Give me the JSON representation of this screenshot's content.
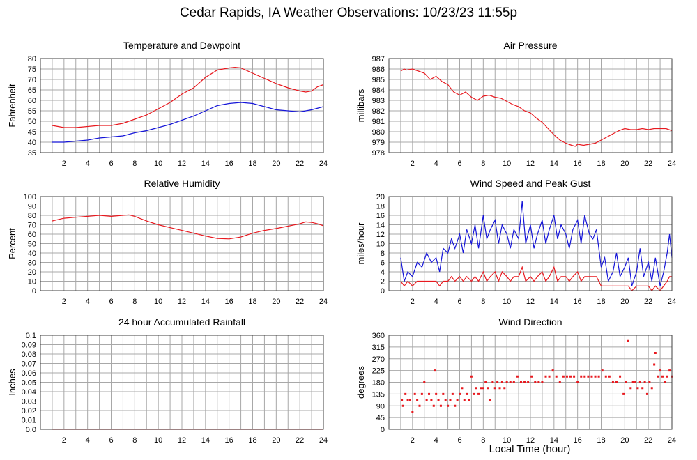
{
  "title": "Cedar Rapids, IA Weather Observations: 10/23/23 11:55p",
  "x_axis_label": "Local Time (hour)",
  "colors": {
    "red": "#e8191f",
    "blue": "#1515d8",
    "grid": "#a8a8a8",
    "frame": "#404040"
  },
  "chart_data": [
    {
      "id": "temp",
      "type": "line",
      "title": "Temperature and Dewpoint",
      "ylabel": "Fahrenheit",
      "xlabel": "",
      "xlim": [
        0,
        24
      ],
      "ylim": [
        35,
        80
      ],
      "xticks": [
        2,
        4,
        6,
        8,
        10,
        12,
        14,
        16,
        18,
        20,
        22,
        24
      ],
      "yticks": [
        35,
        40,
        45,
        50,
        55,
        60,
        65,
        70,
        75,
        80
      ],
      "grid": true,
      "series": [
        {
          "color": "#e8191f",
          "x": [
            1,
            1.5,
            2,
            3,
            4,
            5,
            6,
            7,
            8,
            9,
            10,
            11,
            12,
            13,
            14,
            15,
            16,
            16.5,
            17,
            18,
            19,
            20,
            21,
            22,
            22.5,
            23,
            23.5,
            24
          ],
          "y": [
            48,
            47.5,
            47,
            47,
            47.5,
            48,
            48,
            49,
            51,
            53,
            56,
            59,
            63,
            66,
            71,
            74.5,
            75.5,
            75.8,
            75.5,
            73,
            70.5,
            68,
            66,
            64.5,
            64,
            64.5,
            66.5,
            67.5
          ]
        },
        {
          "color": "#1515d8",
          "x": [
            1,
            2,
            3,
            4,
            5,
            6,
            7,
            8,
            9,
            10,
            11,
            12,
            13,
            14,
            15,
            16,
            17,
            18,
            19,
            20,
            21,
            22,
            23,
            24
          ],
          "y": [
            40,
            40,
            40.5,
            41,
            42,
            42.5,
            43,
            44.5,
            45.5,
            47,
            48.5,
            50.5,
            52.5,
            55,
            57.5,
            58.5,
            59,
            58.5,
            57,
            55.5,
            55,
            54.5,
            55.5,
            57
          ]
        }
      ]
    },
    {
      "id": "pressure",
      "type": "line",
      "title": "Air Pressure",
      "ylabel": "millibars",
      "xlabel": "",
      "xlim": [
        0,
        24
      ],
      "ylim": [
        978,
        987
      ],
      "xticks": [
        2,
        4,
        6,
        8,
        10,
        12,
        14,
        16,
        18,
        20,
        22,
        24
      ],
      "yticks": [
        978,
        979,
        980,
        981,
        982,
        983,
        984,
        985,
        986,
        987
      ],
      "grid": true,
      "series": [
        {
          "color": "#e8191f",
          "x": [
            1,
            1.3,
            1.5,
            2,
            2.5,
            3,
            3.5,
            4,
            4.5,
            5,
            5.5,
            6,
            6.5,
            7,
            7.5,
            8,
            8.5,
            9,
            9.5,
            10,
            10.5,
            11,
            11.5,
            12,
            12.5,
            13,
            13.5,
            14,
            14.5,
            15,
            15.5,
            15.8,
            16,
            16.5,
            17,
            17.5,
            18,
            18.5,
            19,
            19.5,
            20,
            20.5,
            21,
            21.5,
            22,
            22.5,
            23,
            23.5,
            24
          ],
          "y": [
            985.8,
            986.0,
            985.9,
            986.0,
            985.8,
            985.6,
            985.0,
            985.3,
            984.8,
            984.5,
            983.8,
            983.5,
            983.8,
            983.3,
            983.0,
            983.4,
            983.5,
            983.3,
            983.2,
            982.9,
            982.6,
            982.4,
            982.0,
            981.8,
            981.3,
            980.9,
            980.3,
            979.7,
            979.2,
            978.9,
            978.7,
            978.6,
            978.8,
            978.7,
            978.8,
            978.9,
            979.2,
            979.5,
            979.8,
            980.1,
            980.3,
            980.2,
            980.2,
            980.3,
            980.2,
            980.3,
            980.3,
            980.3,
            980.1
          ]
        }
      ]
    },
    {
      "id": "humidity",
      "type": "line",
      "title": "Relative Humidity",
      "ylabel": "Percent",
      "xlabel": "",
      "xlim": [
        0,
        24
      ],
      "ylim": [
        0,
        100
      ],
      "xticks": [
        2,
        4,
        6,
        8,
        10,
        12,
        14,
        16,
        18,
        20,
        22,
        24
      ],
      "yticks": [
        0,
        10,
        20,
        30,
        40,
        50,
        60,
        70,
        80,
        90,
        100
      ],
      "grid": true,
      "series": [
        {
          "color": "#e8191f",
          "x": [
            1,
            2,
            3,
            4,
            5,
            6,
            7,
            7.5,
            8,
            9,
            10,
            11,
            12,
            13,
            14,
            15,
            16,
            17,
            18,
            19,
            20,
            21,
            22,
            22.5,
            23,
            23.5,
            24
          ],
          "y": [
            74,
            77,
            78,
            79,
            80,
            79,
            80,
            80.5,
            79,
            74,
            70,
            67,
            64,
            61,
            58,
            55.5,
            55,
            57,
            61,
            64,
            66,
            68.5,
            71,
            73,
            72.5,
            71,
            69
          ]
        }
      ]
    },
    {
      "id": "wind",
      "type": "line",
      "title": "Wind Speed and Peak Gust",
      "ylabel": "miles/hour",
      "xlabel": "",
      "xlim": [
        0,
        24
      ],
      "ylim": [
        0,
        20
      ],
      "xticks": [
        2,
        4,
        6,
        8,
        10,
        12,
        14,
        16,
        18,
        20,
        22,
        24
      ],
      "yticks": [
        0,
        2,
        4,
        6,
        8,
        10,
        12,
        14,
        16,
        18,
        20
      ],
      "grid": true,
      "series": [
        {
          "color": "#1515d8",
          "x": [
            1,
            1.3,
            1.6,
            2,
            2.4,
            2.8,
            3.2,
            3.6,
            4,
            4.3,
            4.6,
            5,
            5.3,
            5.6,
            6,
            6.3,
            6.6,
            7,
            7.3,
            7.6,
            8,
            8.3,
            8.6,
            9,
            9.3,
            9.6,
            10,
            10.3,
            10.6,
            11,
            11.3,
            11.6,
            12,
            12.3,
            12.6,
            13,
            13.3,
            13.6,
            14,
            14.3,
            14.6,
            15,
            15.3,
            15.6,
            16,
            16.3,
            16.6,
            17,
            17.3,
            17.6,
            18,
            18.3,
            18.6,
            19,
            19.3,
            19.6,
            20,
            20.3,
            20.6,
            21,
            21.3,
            21.6,
            22,
            22.3,
            22.6,
            23,
            23.3,
            23.6,
            23.8,
            24
          ],
          "y": [
            7,
            2,
            4,
            3,
            6,
            5,
            8,
            6,
            7,
            4,
            9,
            8,
            11,
            9,
            12,
            8,
            13,
            10,
            14,
            9,
            16,
            11,
            13,
            15,
            10,
            14,
            12,
            9,
            13,
            11,
            19,
            10,
            14,
            9,
            12,
            15,
            10,
            13,
            16,
            11,
            14,
            12,
            9,
            13,
            15,
            10,
            16,
            12,
            11,
            13,
            5,
            7,
            2,
            4,
            8,
            3,
            5,
            7,
            1,
            4,
            9,
            3,
            6,
            2,
            7,
            1,
            4,
            8,
            12,
            7
          ]
        },
        {
          "color": "#e8191f",
          "x": [
            1,
            1.3,
            1.6,
            2,
            2.4,
            2.8,
            3.2,
            3.6,
            4,
            4.3,
            4.6,
            5,
            5.3,
            5.6,
            6,
            6.3,
            6.6,
            7,
            7.3,
            7.6,
            8,
            8.3,
            8.6,
            9,
            9.3,
            9.6,
            10,
            10.3,
            10.6,
            11,
            11.3,
            11.6,
            12,
            12.3,
            12.6,
            13,
            13.3,
            13.6,
            14,
            14.3,
            14.6,
            15,
            15.3,
            15.6,
            16,
            16.3,
            16.6,
            17,
            17.3,
            17.6,
            18,
            18.3,
            18.6,
            19,
            19.3,
            19.6,
            20,
            20.3,
            20.6,
            21,
            21.3,
            21.6,
            22,
            22.3,
            22.6,
            23,
            23.3,
            23.6,
            23.8,
            24
          ],
          "y": [
            2,
            1,
            2,
            1,
            2,
            2,
            2,
            2,
            2,
            1,
            2,
            2,
            3,
            2,
            3,
            2,
            3,
            2,
            3,
            2,
            4,
            2,
            3,
            4,
            2,
            4,
            3,
            2,
            3,
            3,
            5,
            2,
            3,
            2,
            3,
            4,
            2,
            3,
            5,
            2,
            3,
            3,
            2,
            3,
            4,
            2,
            3,
            3,
            3,
            3,
            1,
            1,
            1,
            1,
            1,
            1,
            1,
            1,
            0,
            1,
            1,
            1,
            1,
            0,
            1,
            0,
            1,
            2,
            3,
            3
          ]
        }
      ]
    },
    {
      "id": "rain",
      "type": "line",
      "title": "24 hour Accumulated Rainfall",
      "ylabel": "Inches",
      "xlabel": "",
      "xlim": [
        0,
        24
      ],
      "ylim": [
        0,
        0.1
      ],
      "xticks": [
        2,
        4,
        6,
        8,
        10,
        12,
        14,
        16,
        18,
        20,
        22,
        24
      ],
      "yticks": [
        "0.0",
        "0.01",
        "0.02",
        "0.03",
        "0.04",
        "0.05",
        "0.06",
        "0.07",
        "0.08",
        "0.09",
        "0.1"
      ],
      "grid": true,
      "series": [
        {
          "color": "#e8191f",
          "x": [
            1,
            24
          ],
          "y": [
            0,
            0
          ]
        }
      ]
    },
    {
      "id": "direction",
      "type": "scatter",
      "title": "Wind Direction",
      "ylabel": "degrees",
      "xlabel": "Local Time (hour)",
      "xlim": [
        0,
        24
      ],
      "ylim": [
        0,
        360
      ],
      "xticks": [
        2,
        4,
        6,
        8,
        10,
        12,
        14,
        16,
        18,
        20,
        22,
        24
      ],
      "yticks": [
        0,
        45,
        90,
        135,
        180,
        225,
        270,
        315,
        360
      ],
      "grid": true,
      "series": [
        {
          "color": "#e8191f",
          "x": [
            1.1,
            1.2,
            1.4,
            1.6,
            1.8,
            2.0,
            2.2,
            2.4,
            2.6,
            2.8,
            3.0,
            3.2,
            3.4,
            3.6,
            3.8,
            3.9,
            4.0,
            4.2,
            4.4,
            4.6,
            4.8,
            5.0,
            5.2,
            5.4,
            5.6,
            5.8,
            6.0,
            6.2,
            6.4,
            6.6,
            6.8,
            7.0,
            7.2,
            7.4,
            7.6,
            7.8,
            8.0,
            8.2,
            8.4,
            8.6,
            8.8,
            9.0,
            9.2,
            9.4,
            9.6,
            9.8,
            10.0,
            10.3,
            10.6,
            10.9,
            11.2,
            11.5,
            11.8,
            12.1,
            12.4,
            12.7,
            13.0,
            13.3,
            13.6,
            13.9,
            14.2,
            14.5,
            14.8,
            15.1,
            15.4,
            15.7,
            16.0,
            16.3,
            16.6,
            16.9,
            17.2,
            17.5,
            17.8,
            18.1,
            18.4,
            18.7,
            19.0,
            19.3,
            19.6,
            19.9,
            20.1,
            20.3,
            20.5,
            20.7,
            20.9,
            21.1,
            21.3,
            21.5,
            21.7,
            21.9,
            22.1,
            22.3,
            22.5,
            22.6,
            22.8,
            23.0,
            23.2,
            23.4,
            23.6,
            23.8,
            24.0
          ],
          "y": [
            112,
            90,
            135,
            112,
            112,
            68,
            135,
            112,
            90,
            135,
            180,
            112,
            135,
            112,
            90,
            225,
            135,
            112,
            90,
            135,
            112,
            90,
            112,
            135,
            90,
            112,
            135,
            158,
            112,
            135,
            112,
            202,
            135,
            158,
            135,
            158,
            158,
            180,
            158,
            112,
            180,
            158,
            180,
            158,
            180,
            158,
            180,
            180,
            180,
            202,
            180,
            180,
            180,
            202,
            180,
            180,
            180,
            202,
            202,
            225,
            202,
            180,
            202,
            202,
            202,
            202,
            180,
            202,
            202,
            202,
            202,
            202,
            202,
            225,
            202,
            202,
            180,
            180,
            202,
            135,
            180,
            338,
            158,
            180,
            180,
            158,
            180,
            158,
            180,
            135,
            180,
            158,
            248,
            292,
            202,
            225,
            202,
            180,
            202,
            225,
            202
          ]
        }
      ]
    }
  ]
}
